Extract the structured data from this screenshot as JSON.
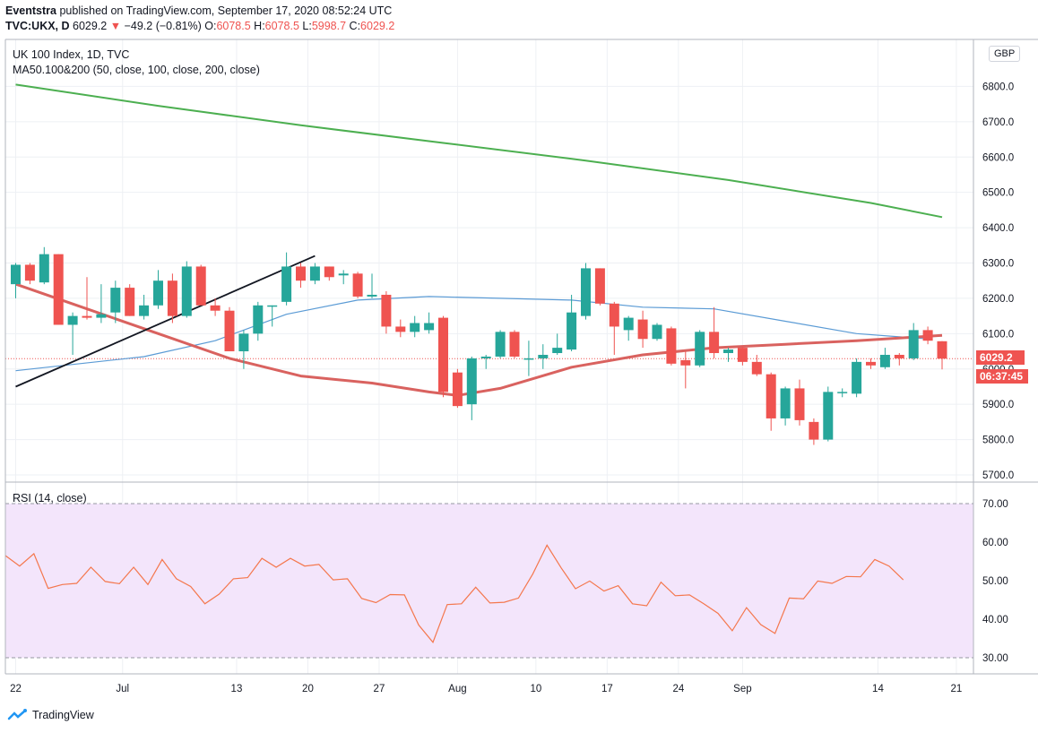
{
  "header": {
    "publisher": "Eventstra",
    "published_text": "published on TradingView.com, September 17, 2020 08:52:24 UTC",
    "symbol": "TVC:UKX, D",
    "last": "6029.2",
    "change": "−49.2 (−0.81%)",
    "open_label": "O:",
    "open": "6078.5",
    "high_label": "H:",
    "high": "6078.5",
    "low_label": "L:",
    "low": "5998.7",
    "close_label": "C:",
    "close": "6029.2"
  },
  "main_pane": {
    "title": "UK 100 Index, 1D, TVC",
    "indicator": "MA50.100&200 (50, close, 100, close, 200, close)",
    "currency": "GBP",
    "price_tag": "6029.2",
    "countdown": "06:37:45"
  },
  "rsi_pane": {
    "title": "RSI (14, close)"
  },
  "branding": {
    "name": "TradingView"
  },
  "colors": {
    "up": "#26a69a",
    "down": "#ef5350",
    "ma50": "#5b9bd5",
    "ma100": "#d9625f",
    "ma200": "#4caf50",
    "rsi_line": "#f4774d",
    "rsi_band": "#f3e5fb"
  },
  "chart_data": [
    {
      "type": "candlestick",
      "title": "UK 100 Index, 1D, TVC",
      "y_ticks": [
        "5700.0",
        "5800.0",
        "5900.0",
        "6000.0",
        "6100.0",
        "6200.0",
        "6300.0",
        "6400.0",
        "6500.0",
        "6600.0",
        "6700.0",
        "6800.0"
      ],
      "ylim": [
        5670,
        6900
      ],
      "x_ticks": [
        "22",
        "Jul",
        "13",
        "20",
        "27",
        "Aug",
        "10",
        "17",
        "24",
        "Sep",
        "14",
        "21"
      ],
      "candles": [
        {
          "o": 6240,
          "h": 6300,
          "l": 6200,
          "c": 6295
        },
        {
          "o": 6295,
          "h": 6300,
          "l": 6240,
          "c": 6250
        },
        {
          "o": 6245,
          "h": 6345,
          "l": 6240,
          "c": 6325
        },
        {
          "o": 6325,
          "h": 6325,
          "l": 6125,
          "c": 6125
        },
        {
          "o": 6125,
          "h": 6160,
          "l": 6040,
          "c": 6150
        },
        {
          "o": 6150,
          "h": 6260,
          "l": 6140,
          "c": 6145
        },
        {
          "o": 6145,
          "h": 6240,
          "l": 6130,
          "c": 6155
        },
        {
          "o": 6160,
          "h": 6250,
          "l": 6130,
          "c": 6230
        },
        {
          "o": 6230,
          "h": 6240,
          "l": 6150,
          "c": 6150
        },
        {
          "o": 6150,
          "h": 6210,
          "l": 6140,
          "c": 6180
        },
        {
          "o": 6180,
          "h": 6280,
          "l": 6170,
          "c": 6250
        },
        {
          "o": 6250,
          "h": 6270,
          "l": 6130,
          "c": 6150
        },
        {
          "o": 6150,
          "h": 6305,
          "l": 6145,
          "c": 6290
        },
        {
          "o": 6290,
          "h": 6295,
          "l": 6180,
          "c": 6180
        },
        {
          "o": 6180,
          "h": 6200,
          "l": 6150,
          "c": 6165
        },
        {
          "o": 6165,
          "h": 6175,
          "l": 6050,
          "c": 6050
        },
        {
          "o": 6050,
          "h": 6110,
          "l": 6000,
          "c": 6100
        },
        {
          "o": 6100,
          "h": 6190,
          "l": 6080,
          "c": 6180
        },
        {
          "o": 6180,
          "h": 6180,
          "l": 6120,
          "c": 6180
        },
        {
          "o": 6190,
          "h": 6330,
          "l": 6180,
          "c": 6290
        },
        {
          "o": 6290,
          "h": 6300,
          "l": 6230,
          "c": 6250
        },
        {
          "o": 6250,
          "h": 6300,
          "l": 6240,
          "c": 6290
        },
        {
          "o": 6290,
          "h": 6290,
          "l": 6250,
          "c": 6260
        },
        {
          "o": 6265,
          "h": 6280,
          "l": 6240,
          "c": 6270
        },
        {
          "o": 6270,
          "h": 6275,
          "l": 6200,
          "c": 6205
        },
        {
          "o": 6205,
          "h": 6270,
          "l": 6200,
          "c": 6210
        },
        {
          "o": 6210,
          "h": 6220,
          "l": 6100,
          "c": 6120
        },
        {
          "o": 6120,
          "h": 6140,
          "l": 6090,
          "c": 6105
        },
        {
          "o": 6105,
          "h": 6150,
          "l": 6090,
          "c": 6130
        },
        {
          "o": 6110,
          "h": 6160,
          "l": 6100,
          "c": 6130
        },
        {
          "o": 6145,
          "h": 6150,
          "l": 5920,
          "c": 5935
        },
        {
          "o": 5990,
          "h": 6000,
          "l": 5890,
          "c": 5895
        },
        {
          "o": 5900,
          "h": 6035,
          "l": 5855,
          "c": 6030
        },
        {
          "o": 6030,
          "h": 6040,
          "l": 6000,
          "c": 6035
        },
        {
          "o": 6035,
          "h": 6110,
          "l": 6030,
          "c": 6105
        },
        {
          "o": 6105,
          "h": 6110,
          "l": 6030,
          "c": 6035
        },
        {
          "o": 6030,
          "h": 6080,
          "l": 5980,
          "c": 6030
        },
        {
          "o": 6030,
          "h": 6070,
          "l": 6000,
          "c": 6040
        },
        {
          "o": 6045,
          "h": 6100,
          "l": 6040,
          "c": 6060
        },
        {
          "o": 6055,
          "h": 6210,
          "l": 6050,
          "c": 6160
        },
        {
          "o": 6150,
          "h": 6300,
          "l": 6140,
          "c": 6285
        },
        {
          "o": 6285,
          "h": 6285,
          "l": 6180,
          "c": 6185
        },
        {
          "o": 6185,
          "h": 6190,
          "l": 6040,
          "c": 6120
        },
        {
          "o": 6110,
          "h": 6150,
          "l": 6080,
          "c": 6145
        },
        {
          "o": 6140,
          "h": 6165,
          "l": 6060,
          "c": 6085
        },
        {
          "o": 6085,
          "h": 6130,
          "l": 6080,
          "c": 6125
        },
        {
          "o": 6115,
          "h": 6120,
          "l": 6010,
          "c": 6015
        },
        {
          "o": 6025,
          "h": 6050,
          "l": 5945,
          "c": 6010
        },
        {
          "o": 6010,
          "h": 6110,
          "l": 6005,
          "c": 6105
        },
        {
          "o": 6105,
          "h": 6175,
          "l": 6030,
          "c": 6045
        },
        {
          "o": 6045,
          "h": 6060,
          "l": 6020,
          "c": 6055
        },
        {
          "o": 6060,
          "h": 6065,
          "l": 6010,
          "c": 6020
        },
        {
          "o": 6020,
          "h": 6040,
          "l": 5980,
          "c": 5985
        },
        {
          "o": 5985,
          "h": 5990,
          "l": 5825,
          "c": 5860
        },
        {
          "o": 5860,
          "h": 5950,
          "l": 5840,
          "c": 5945
        },
        {
          "o": 5945,
          "h": 5970,
          "l": 5840,
          "c": 5855
        },
        {
          "o": 5850,
          "h": 5860,
          "l": 5785,
          "c": 5800
        },
        {
          "o": 5800,
          "h": 5950,
          "l": 5795,
          "c": 5935
        },
        {
          "o": 5935,
          "h": 5945,
          "l": 5920,
          "c": 5935
        },
        {
          "o": 5930,
          "h": 6030,
          "l": 5920,
          "c": 6020
        },
        {
          "o": 6020,
          "h": 6030,
          "l": 6000,
          "c": 6010
        },
        {
          "o": 6005,
          "h": 6060,
          "l": 6000,
          "c": 6040
        },
        {
          "o": 6040,
          "h": 6045,
          "l": 6010,
          "c": 6030
        },
        {
          "o": 6030,
          "h": 6130,
          "l": 6025,
          "c": 6110
        },
        {
          "o": 6110,
          "h": 6120,
          "l": 6070,
          "c": 6080
        },
        {
          "o": 6078.5,
          "h": 6078.5,
          "l": 5998.7,
          "c": 6029.2
        }
      ],
      "series": [
        {
          "name": "MA50",
          "values": [
            [
              0,
              5995
            ],
            [
              9,
              6035
            ],
            [
              14,
              6080
            ],
            [
              19,
              6155
            ],
            [
              24,
              6195
            ],
            [
              29,
              6205
            ],
            [
              34,
              6200
            ],
            [
              39,
              6195
            ],
            [
              44,
              6175
            ],
            [
              49,
              6170
            ],
            [
              54,
              6135
            ],
            [
              59,
              6100
            ],
            [
              64,
              6085
            ]
          ]
        },
        {
          "name": "MA100",
          "values": [
            [
              0,
              6240
            ],
            [
              5,
              6170
            ],
            [
              10,
              6100
            ],
            [
              15,
              6030
            ],
            [
              20,
              5980
            ],
            [
              25,
              5960
            ],
            [
              29,
              5935
            ],
            [
              31,
              5925
            ],
            [
              34,
              5945
            ],
            [
              39,
              6005
            ],
            [
              44,
              6040
            ],
            [
              49,
              6060
            ],
            [
              54,
              6070
            ],
            [
              59,
              6080
            ],
            [
              65,
              6095
            ]
          ]
        },
        {
          "name": "MA200",
          "values": [
            [
              0,
              6805
            ],
            [
              10,
              6745
            ],
            [
              20,
              6690
            ],
            [
              30,
              6640
            ],
            [
              40,
              6590
            ],
            [
              50,
              6535
            ],
            [
              60,
              6470
            ],
            [
              65,
              6430
            ]
          ]
        },
        {
          "name": "trendline",
          "values": [
            [
              0,
              5950
            ],
            [
              21,
              6320
            ]
          ]
        }
      ]
    },
    {
      "type": "line",
      "title": "RSI (14, close)",
      "y_ticks": [
        "30.00",
        "40.00",
        "50.00",
        "60.00",
        "70.00"
      ],
      "ylim": [
        26,
        74
      ],
      "band": [
        30,
        70
      ],
      "series": [
        {
          "name": "RSI",
          "values": [
            56.5,
            53.8,
            57,
            48,
            49,
            49.3,
            53.5,
            49.8,
            49.2,
            53.5,
            49,
            55.5,
            50.5,
            48.5,
            44,
            46.5,
            50.5,
            50.8,
            55.8,
            53.5,
            55.8,
            53.8,
            54.2,
            50.2,
            50.5,
            45.4,
            44.3,
            46.4,
            46.3,
            38.5,
            34,
            43.8,
            44,
            48.3,
            44.2,
            44.4,
            45.5,
            51.7,
            59.2,
            53.3,
            47.9,
            49.9,
            47.3,
            48.7,
            44,
            43.5,
            49.6,
            46.1,
            46.3,
            44,
            41.5,
            37,
            43,
            38.6,
            36.3,
            45.5,
            45.3,
            49.9,
            49.3,
            51.1,
            51,
            55.5,
            53.8,
            50.2
          ]
        }
      ]
    }
  ]
}
